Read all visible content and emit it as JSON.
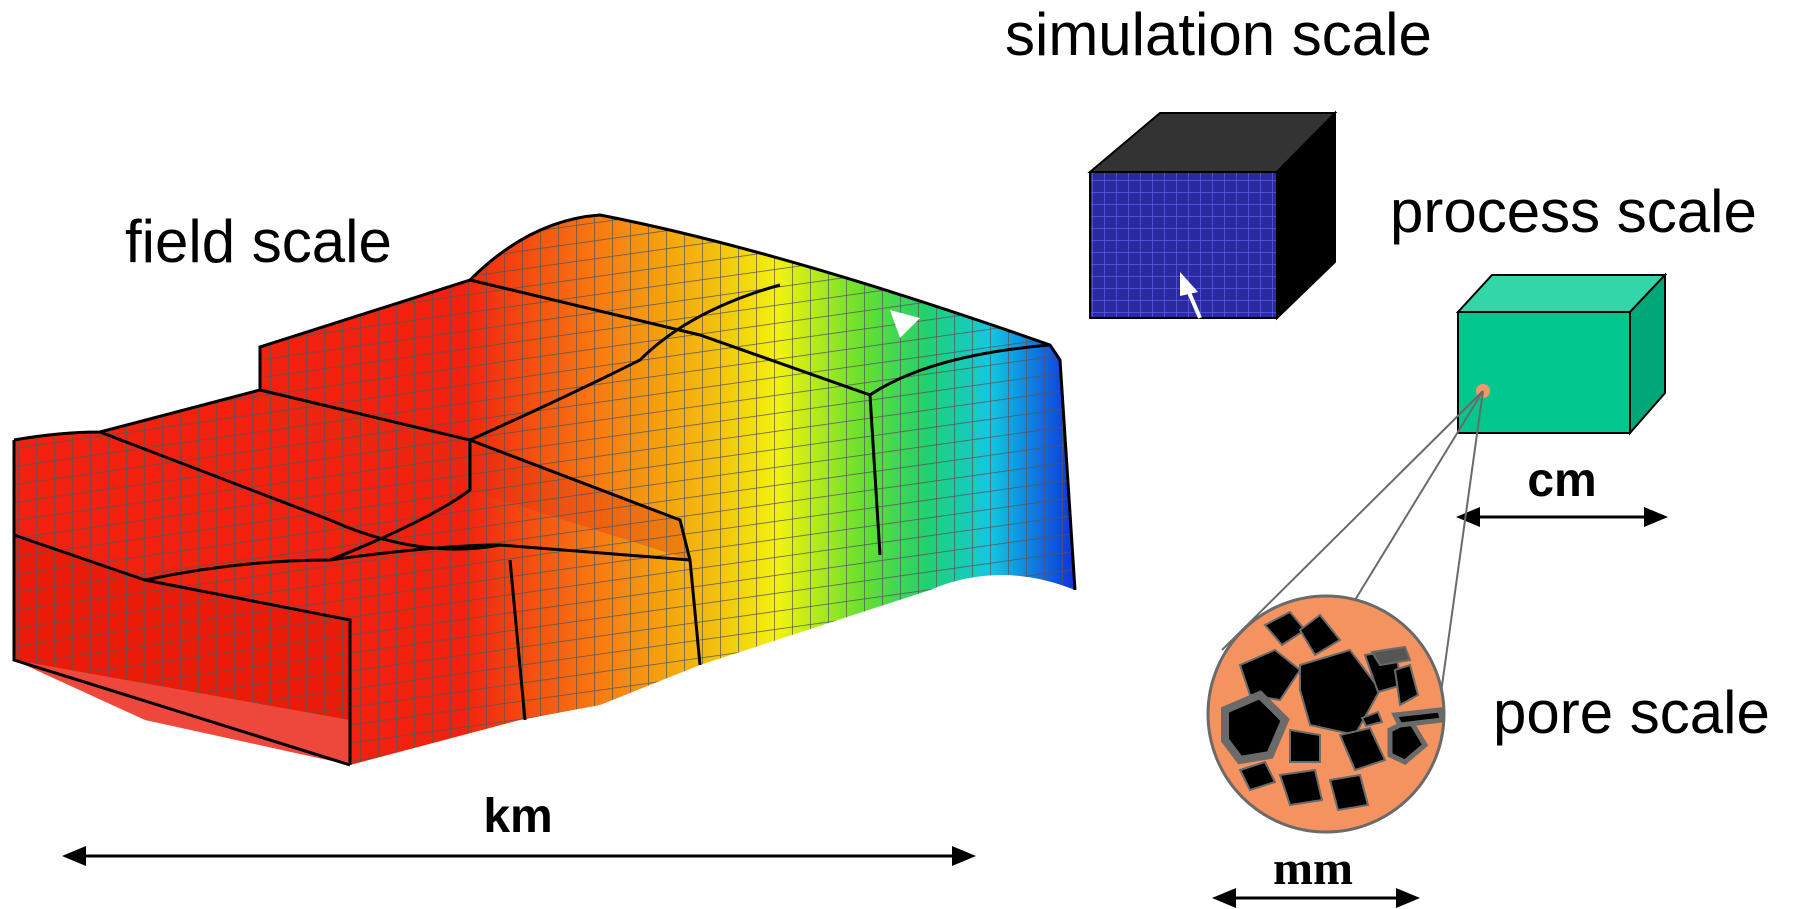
{
  "labels": {
    "field_scale": "field scale",
    "simulation_scale": "simulation scale",
    "process_scale": "process scale",
    "pore_scale": "pore scale"
  },
  "units": {
    "field": "km",
    "process": "cm",
    "pore": "mm"
  },
  "colors": {
    "field_red": "#f2200e",
    "field_orange": "#f77a12",
    "field_yellow": "#f2f20e",
    "field_green": "#33d633",
    "field_cyan": "#12d6d0",
    "field_blue": "#1030e0",
    "mesh_line": "#555555",
    "sim_front": "#2a2aa0",
    "sim_grid": "#4a4ad8",
    "sim_top": "#333333",
    "sim_side": "#000000",
    "process_front": "#00c88c",
    "process_top": "#33d6a8",
    "process_side": "#00a878",
    "pore_bg": "#f4935f",
    "grain": "#000000",
    "grain_rim": "#6a6a6a",
    "pore_point": "#f09a6a"
  }
}
